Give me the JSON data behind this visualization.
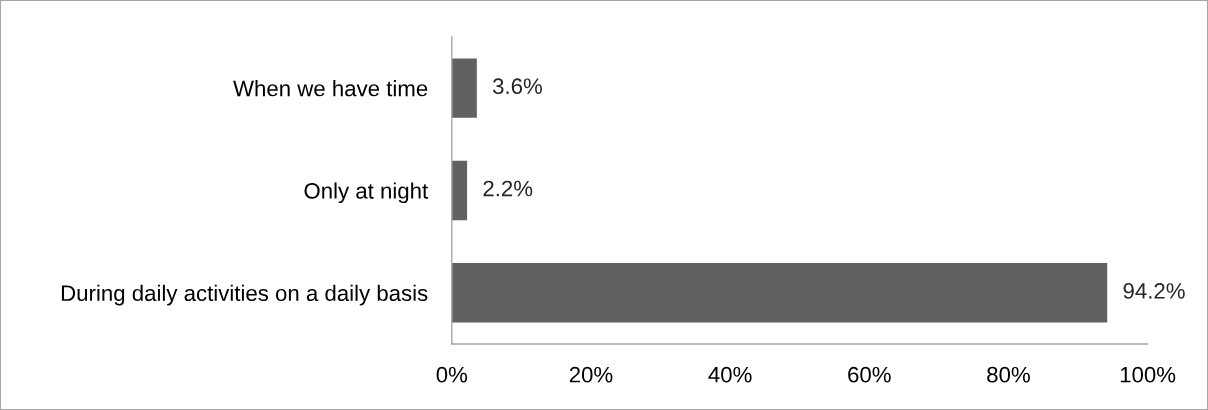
{
  "chart_data": {
    "type": "bar",
    "orientation": "horizontal",
    "categories": [
      "When we have time",
      "Only at night",
      "During daily activities on a daily basis"
    ],
    "values": [
      3.6,
      2.2,
      94.2
    ],
    "color": "#616161",
    "value_labels": [
      "3.6%",
      "2.2%",
      "94.2%"
    ],
    "xlim": [
      0,
      100
    ],
    "xticks": [
      {
        "value": 0,
        "label": "0%"
      },
      {
        "value": 20,
        "label": "20%"
      },
      {
        "value": 40,
        "label": "40%"
      },
      {
        "value": 60,
        "label": "60%"
      },
      {
        "value": 80,
        "label": "80%"
      },
      {
        "value": 100,
        "label": "100%"
      }
    ]
  }
}
